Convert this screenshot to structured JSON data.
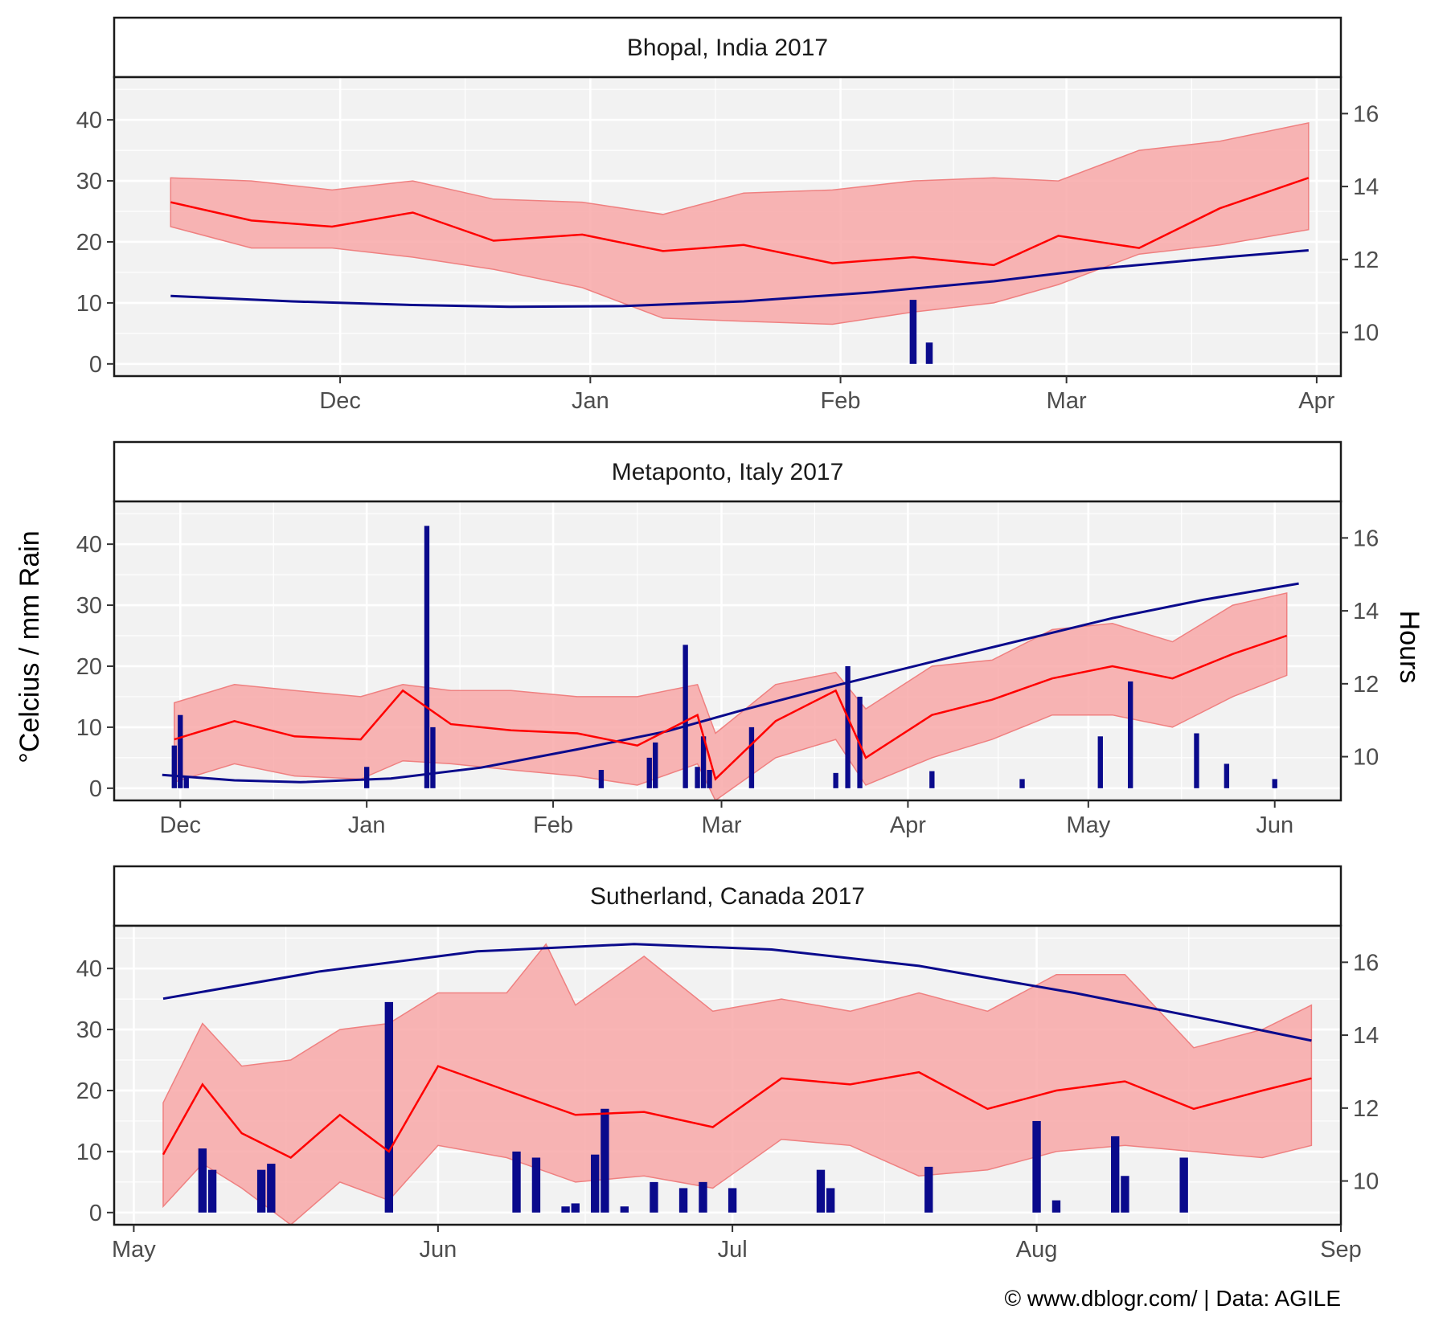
{
  "figure": {
    "ylabel_left": "°Celcius / mm Rain",
    "ylabel_right": "Hours",
    "credit": "© www.dblogr.com/  |  Data: AGILE",
    "colors": {
      "temp_line": "#ff0000",
      "temp_ribbon": "#f8a8a8",
      "rain_bar": "#0a0a8c",
      "daylight_line": "#0a0a8c",
      "panel_bg": "#f2f2f2",
      "grid": "#ffffff"
    }
  },
  "chart_data": [
    {
      "type": "line",
      "title": "Bhopal, India 2017",
      "x_type": "date",
      "xlim": [
        "2016-11-03",
        "2017-04-04"
      ],
      "x_ticks": [
        "2016-12-01",
        "2017-01-01",
        "2017-02-01",
        "2017-03-01",
        "2017-04-01"
      ],
      "x_tick_labels": [
        "Dec",
        "Jan",
        "Feb",
        "Mar",
        "Apr"
      ],
      "ylim": [
        -2,
        47
      ],
      "y_ticks": [
        0,
        10,
        20,
        30,
        40
      ],
      "y2lim": [
        8.8,
        17
      ],
      "y2_ticks": [
        10,
        12,
        14,
        16
      ],
      "grid": true,
      "series": [
        {
          "role": "temp_mean",
          "x": [
            "2016-11-10",
            "2016-11-20",
            "2016-11-30",
            "2016-12-10",
            "2016-12-20",
            "2016-12-31",
            "2017-01-10",
            "2017-01-20",
            "2017-01-31",
            "2017-02-10",
            "2017-02-20",
            "2017-02-28",
            "2017-03-10",
            "2017-03-20",
            "2017-03-31"
          ],
          "values": [
            26.5,
            23.5,
            22.5,
            24.8,
            20.2,
            21.2,
            18.5,
            19.5,
            16.5,
            17.5,
            16.2,
            21.0,
            19.0,
            25.5,
            30.5
          ]
        },
        {
          "role": "temp_max",
          "x": [
            "2016-11-10",
            "2016-11-20",
            "2016-11-30",
            "2016-12-10",
            "2016-12-20",
            "2016-12-31",
            "2017-01-10",
            "2017-01-20",
            "2017-01-31",
            "2017-02-10",
            "2017-02-20",
            "2017-02-28",
            "2017-03-10",
            "2017-03-20",
            "2017-03-31"
          ],
          "values": [
            30.5,
            30.0,
            28.5,
            30.0,
            27.0,
            26.5,
            24.5,
            28.0,
            28.5,
            30.0,
            30.5,
            30.0,
            35.0,
            36.5,
            39.5
          ]
        },
        {
          "role": "temp_min",
          "x": [
            "2016-11-10",
            "2016-11-20",
            "2016-11-30",
            "2016-12-10",
            "2016-12-20",
            "2016-12-31",
            "2017-01-10",
            "2017-01-20",
            "2017-01-31",
            "2017-02-10",
            "2017-02-20",
            "2017-02-28",
            "2017-03-10",
            "2017-03-20",
            "2017-03-31"
          ],
          "values": [
            22.5,
            19.0,
            19.0,
            17.5,
            15.5,
            12.5,
            7.5,
            7.0,
            6.5,
            8.5,
            10.0,
            13.0,
            18.0,
            19.5,
            22.0
          ]
        },
        {
          "role": "daylight_hours",
          "x": [
            "2016-11-10",
            "2016-11-25",
            "2016-12-10",
            "2016-12-22",
            "2017-01-05",
            "2017-01-20",
            "2017-02-05",
            "2017-02-20",
            "2017-03-05",
            "2017-03-20",
            "2017-03-31"
          ],
          "values": [
            11.0,
            10.85,
            10.75,
            10.7,
            10.72,
            10.85,
            11.1,
            11.4,
            11.75,
            12.05,
            12.25
          ]
        },
        {
          "role": "rain_mm",
          "x": [
            "2017-02-10",
            "2017-02-12"
          ],
          "values": [
            10.5,
            3.5
          ]
        }
      ]
    },
    {
      "type": "line",
      "title": "Metaponto, Italy 2017",
      "x_type": "date",
      "xlim": [
        "2016-11-20",
        "2017-06-12"
      ],
      "x_ticks": [
        "2016-12-01",
        "2017-01-01",
        "2017-02-01",
        "2017-03-01",
        "2017-04-01",
        "2017-05-01",
        "2017-06-01"
      ],
      "x_tick_labels": [
        "Dec",
        "Jan",
        "Feb",
        "Mar",
        "Apr",
        "May",
        "Jun"
      ],
      "ylim": [
        -2,
        47
      ],
      "y_ticks": [
        0,
        10,
        20,
        30,
        40
      ],
      "y2lim": [
        8.8,
        17
      ],
      "y2_ticks": [
        10,
        12,
        14,
        16
      ],
      "grid": true,
      "series": [
        {
          "role": "temp_mean",
          "x": [
            "2016-11-30",
            "2016-12-10",
            "2016-12-20",
            "2016-12-31",
            "2017-01-07",
            "2017-01-15",
            "2017-01-25",
            "2017-02-05",
            "2017-02-15",
            "2017-02-25",
            "2017-02-28",
            "2017-03-10",
            "2017-03-20",
            "2017-03-25",
            "2017-04-05",
            "2017-04-15",
            "2017-04-25",
            "2017-05-05",
            "2017-05-15",
            "2017-05-25",
            "2017-06-03"
          ],
          "values": [
            8.0,
            11.0,
            8.5,
            8.0,
            16.0,
            10.5,
            9.5,
            9.0,
            7.0,
            12.0,
            1.5,
            11.0,
            16.0,
            5.0,
            12.0,
            14.5,
            18.0,
            20.0,
            18.0,
            22.0,
            25.0
          ]
        },
        {
          "role": "temp_max",
          "x": [
            "2016-11-30",
            "2016-12-10",
            "2016-12-20",
            "2016-12-31",
            "2017-01-07",
            "2017-01-15",
            "2017-01-25",
            "2017-02-05",
            "2017-02-15",
            "2017-02-25",
            "2017-02-28",
            "2017-03-10",
            "2017-03-20",
            "2017-03-25",
            "2017-04-05",
            "2017-04-15",
            "2017-04-25",
            "2017-05-05",
            "2017-05-15",
            "2017-05-25",
            "2017-06-03"
          ],
          "values": [
            14.0,
            17.0,
            16.0,
            15.0,
            17.0,
            16.0,
            16.0,
            15.0,
            15.0,
            17.0,
            9.0,
            17.0,
            19.0,
            13.0,
            20.0,
            21.0,
            26.0,
            27.0,
            24.0,
            30.0,
            32.0
          ]
        },
        {
          "role": "temp_min",
          "x": [
            "2016-11-30",
            "2016-12-10",
            "2016-12-20",
            "2016-12-31",
            "2017-01-07",
            "2017-01-15",
            "2017-01-25",
            "2017-02-05",
            "2017-02-15",
            "2017-02-25",
            "2017-02-28",
            "2017-03-10",
            "2017-03-20",
            "2017-03-25",
            "2017-04-05",
            "2017-04-15",
            "2017-04-25",
            "2017-05-05",
            "2017-05-15",
            "2017-05-25",
            "2017-06-03"
          ],
          "values": [
            1.0,
            4.0,
            2.0,
            1.5,
            4.5,
            4.0,
            3.0,
            2.0,
            0.5,
            4.0,
            -2.0,
            5.0,
            8.0,
            0.5,
            5.0,
            8.0,
            12.0,
            12.0,
            10.0,
            15.0,
            18.5
          ]
        },
        {
          "role": "daylight_hours",
          "x": [
            "2016-11-28",
            "2016-12-10",
            "2016-12-21",
            "2017-01-05",
            "2017-01-20",
            "2017-02-05",
            "2017-02-20",
            "2017-03-05",
            "2017-03-20",
            "2017-04-05",
            "2017-04-20",
            "2017-05-05",
            "2017-05-20",
            "2017-06-05"
          ],
          "values": [
            9.5,
            9.35,
            9.3,
            9.4,
            9.7,
            10.2,
            10.7,
            11.3,
            11.95,
            12.6,
            13.2,
            13.8,
            14.3,
            14.75
          ]
        },
        {
          "role": "rain_mm",
          "x": [
            "2016-11-30",
            "2016-12-01",
            "2016-12-02",
            "2017-01-01",
            "2017-01-11",
            "2017-01-12",
            "2017-02-09",
            "2017-02-17",
            "2017-02-18",
            "2017-02-23",
            "2017-02-25",
            "2017-02-26",
            "2017-02-27",
            "2017-03-06",
            "2017-03-20",
            "2017-03-22",
            "2017-03-24",
            "2017-04-05",
            "2017-04-20",
            "2017-05-03",
            "2017-05-08",
            "2017-05-19",
            "2017-05-24",
            "2017-06-01"
          ],
          "values": [
            7.0,
            12.0,
            2.0,
            3.5,
            43.0,
            10.0,
            3.0,
            5.0,
            7.5,
            23.5,
            3.5,
            8.5,
            3.0,
            10.0,
            2.5,
            20.0,
            15.0,
            2.8,
            1.5,
            8.5,
            17.5,
            9.0,
            4.0,
            1.5
          ]
        }
      ]
    },
    {
      "type": "line",
      "title": "Sutherland, Canada 2017",
      "x_type": "date",
      "xlim": [
        "2017-04-29",
        "2017-09-01"
      ],
      "x_ticks": [
        "2017-05-01",
        "2017-06-01",
        "2017-07-01",
        "2017-08-01",
        "2017-09-01"
      ],
      "x_tick_labels": [
        "May",
        "Jun",
        "Jul",
        "Aug",
        "Sep"
      ],
      "ylim": [
        -2,
        47
      ],
      "y_ticks": [
        0,
        10,
        20,
        30,
        40
      ],
      "y2lim": [
        8.8,
        17
      ],
      "y2_ticks": [
        10,
        12,
        14,
        16
      ],
      "grid": true,
      "series": [
        {
          "role": "temp_mean",
          "x": [
            "2017-05-04",
            "2017-05-08",
            "2017-05-12",
            "2017-05-17",
            "2017-05-22",
            "2017-05-27",
            "2017-06-01",
            "2017-06-08",
            "2017-06-15",
            "2017-06-22",
            "2017-06-29",
            "2017-07-06",
            "2017-07-13",
            "2017-07-20",
            "2017-07-27",
            "2017-08-03",
            "2017-08-10",
            "2017-08-17",
            "2017-08-24",
            "2017-08-29"
          ],
          "values": [
            9.5,
            21.0,
            13.0,
            9.0,
            16.0,
            10.0,
            24.0,
            20.0,
            16.0,
            16.5,
            14.0,
            22.0,
            21.0,
            23.0,
            17.0,
            20.0,
            21.5,
            17.0,
            20.0,
            22.0
          ]
        },
        {
          "role": "temp_max",
          "x": [
            "2017-05-04",
            "2017-05-08",
            "2017-05-12",
            "2017-05-17",
            "2017-05-22",
            "2017-05-27",
            "2017-06-01",
            "2017-06-08",
            "2017-06-12",
            "2017-06-15",
            "2017-06-22",
            "2017-06-29",
            "2017-07-06",
            "2017-07-13",
            "2017-07-20",
            "2017-07-27",
            "2017-08-03",
            "2017-08-10",
            "2017-08-17",
            "2017-08-24",
            "2017-08-29"
          ],
          "values": [
            18.0,
            31.0,
            24.0,
            25.0,
            30.0,
            31.0,
            36.0,
            36.0,
            44.0,
            34.0,
            42.0,
            33.0,
            35.0,
            33.0,
            36.0,
            33.0,
            39.0,
            39.0,
            27.0,
            30.0,
            34.0
          ]
        },
        {
          "role": "temp_min",
          "x": [
            "2017-05-04",
            "2017-05-08",
            "2017-05-12",
            "2017-05-17",
            "2017-05-22",
            "2017-05-27",
            "2017-06-01",
            "2017-06-08",
            "2017-06-15",
            "2017-06-22",
            "2017-06-29",
            "2017-07-06",
            "2017-07-13",
            "2017-07-20",
            "2017-07-27",
            "2017-08-03",
            "2017-08-10",
            "2017-08-17",
            "2017-08-24",
            "2017-08-29"
          ],
          "values": [
            1.0,
            8.0,
            4.0,
            -2.0,
            5.0,
            2.0,
            11.0,
            9.0,
            5.0,
            6.0,
            4.0,
            12.0,
            11.0,
            6.0,
            7.0,
            10.0,
            11.0,
            10.0,
            9.0,
            11.0
          ]
        },
        {
          "role": "daylight_hours",
          "x": [
            "2017-05-04",
            "2017-05-20",
            "2017-06-05",
            "2017-06-21",
            "2017-07-05",
            "2017-07-20",
            "2017-08-05",
            "2017-08-20",
            "2017-08-29"
          ],
          "values": [
            15.0,
            15.75,
            16.3,
            16.5,
            16.35,
            15.9,
            15.15,
            14.35,
            13.85
          ]
        },
        {
          "role": "rain_mm",
          "x": [
            "2017-05-08",
            "2017-05-09",
            "2017-05-14",
            "2017-05-15",
            "2017-05-27",
            "2017-06-09",
            "2017-06-11",
            "2017-06-14",
            "2017-06-15",
            "2017-06-17",
            "2017-06-18",
            "2017-06-20",
            "2017-06-23",
            "2017-06-26",
            "2017-06-28",
            "2017-07-01",
            "2017-07-10",
            "2017-07-11",
            "2017-07-21",
            "2017-08-01",
            "2017-08-03",
            "2017-08-09",
            "2017-08-10",
            "2017-08-16"
          ],
          "values": [
            10.5,
            7.0,
            7.0,
            8.0,
            34.5,
            10.0,
            9.0,
            1.0,
            1.5,
            9.5,
            17.0,
            1.0,
            5.0,
            4.0,
            5.0,
            4.0,
            7.0,
            4.0,
            7.5,
            15.0,
            2.0,
            12.5,
            6.0,
            9.0
          ]
        }
      ]
    }
  ]
}
